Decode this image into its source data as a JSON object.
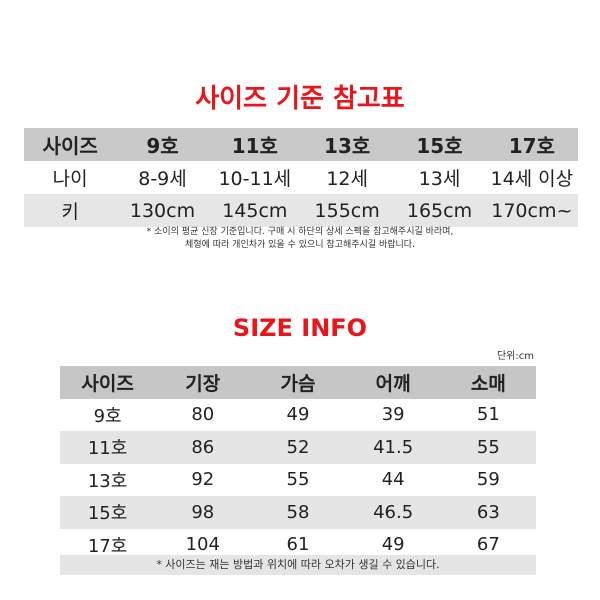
{
  "reference": {
    "title": "사이즈 기준 참고표",
    "header": [
      "사이즈",
      "9호",
      "11호",
      "13호",
      "15호",
      "17호"
    ],
    "rows": [
      [
        "나이",
        "8-9세",
        "10-11세",
        "12세",
        "13세",
        "14세 이상"
      ],
      [
        "키",
        "130cm",
        "145cm",
        "155cm",
        "165cm",
        "170cm~"
      ]
    ],
    "note_line1": "* 소이의 평균 신장 기준입니다. 구매 시 하단의 상세 스펙을 참고해주시길 바라며,",
    "note_line2": "체형에 따라 개인차가 있을 수 있으니 참고해주시길 바랍니다."
  },
  "size_info": {
    "title": "SIZE INFO",
    "unit": "단위:cm",
    "header": [
      "사이즈",
      "기장",
      "가슴",
      "어깨",
      "소매"
    ],
    "rows": [
      [
        "9호",
        "80",
        "49",
        "39",
        "51"
      ],
      [
        "11호",
        "86",
        "52",
        "41.5",
        "55"
      ],
      [
        "13호",
        "92",
        "55",
        "44",
        "59"
      ],
      [
        "15호",
        "98",
        "58",
        "46.5",
        "63"
      ],
      [
        "17호",
        "104",
        "61",
        "49",
        "67"
      ]
    ],
    "note": "* 사이즈는 재는 방법과 위치에 따라 오차가 생길 수 있습니다."
  },
  "colors": {
    "title": "#e8151b",
    "header_bg": "#c9c9c9",
    "stripe_bg": "#e6e6e6"
  }
}
